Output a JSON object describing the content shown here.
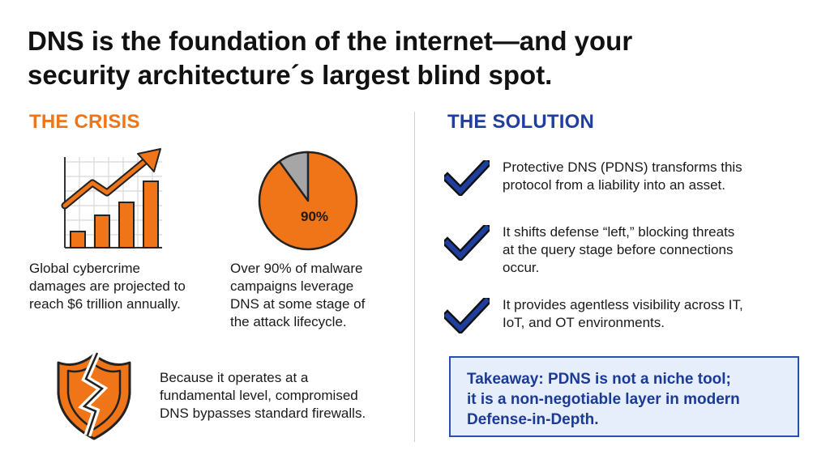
{
  "title": {
    "line1": "DNS is the foundation of the internet—and your",
    "line2": "security architecture´s largest blind spot."
  },
  "crisis": {
    "heading": "THE CRISIS",
    "item1": {
      "icon": "growth-chart-icon",
      "lines": [
        "Global cybercrime",
        "damages are projected to",
        "reach $6 trillion annually."
      ]
    },
    "item2": {
      "icon": "pie-chart-icon",
      "pie_label": "90%",
      "pie_fraction": 0.9,
      "lines": [
        "Over 90% of malware",
        "campaigns leverage",
        "DNS at some stage of",
        "the attack lifecycle."
      ]
    },
    "item3": {
      "icon": "broken-shield-icon",
      "lines": [
        "Because it operates at a",
        "fundamental level, compromised",
        "DNS bypasses standard firewalls."
      ]
    }
  },
  "solution": {
    "heading": "THE SOLUTION",
    "items": [
      {
        "icon": "checkmark-icon",
        "lines": [
          "Protective DNS (PDNS) transforms this",
          "protocol from a liability into an asset."
        ]
      },
      {
        "icon": "checkmark-icon",
        "lines": [
          "It shifts defense “left,” blocking threats",
          "at the query stage before connections",
          "occur."
        ]
      },
      {
        "icon": "checkmark-icon",
        "lines": [
          "It provides agentless visibility across IT,",
          "IoT, and OT environments."
        ]
      }
    ],
    "takeaway": {
      "lines": [
        "Takeaway: PDNS is not a niche tool;",
        "it is a non-negotiable layer in modern",
        "Defense-in-Depth."
      ]
    }
  },
  "colors": {
    "crisis_accent": "#f07418",
    "solution_accent": "#1f3fa0",
    "pie_remainder": "#a6a6a6",
    "takeaway_bg": "#e7eefb"
  }
}
